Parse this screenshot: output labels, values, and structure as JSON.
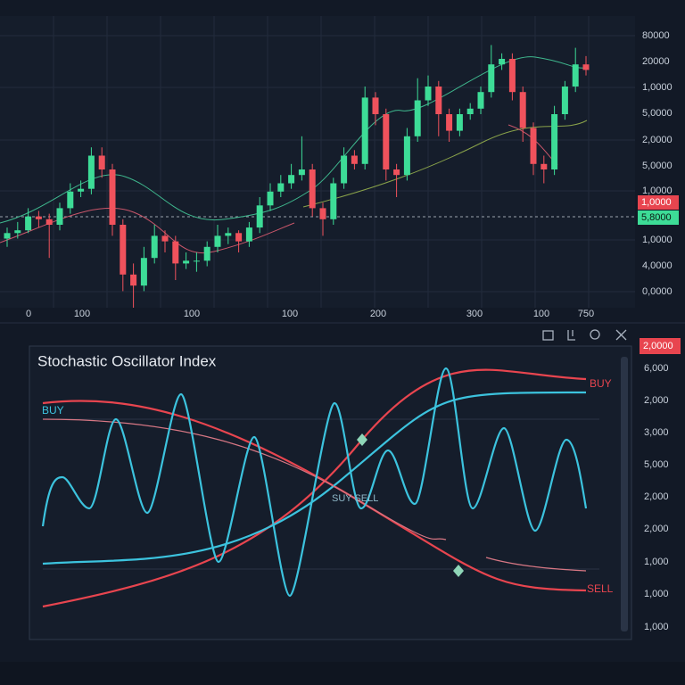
{
  "price_chart": {
    "y_axis_labels": [
      "80000",
      "20000",
      "1,0000",
      "5,0000",
      "2,0000",
      "5,0000",
      "1,0000",
      "1,0000",
      "4,0000",
      "0,0000"
    ],
    "price_badges": [
      "1,0000",
      "5,8000"
    ],
    "x_axis_labels": [
      "0",
      "100",
      "100",
      "100",
      "200",
      "300",
      "100",
      "750"
    ],
    "candles": [
      [
        25,
        29,
        22,
        27
      ],
      [
        27,
        31,
        25,
        28
      ],
      [
        28,
        36,
        27,
        33
      ],
      [
        33,
        35,
        29,
        32
      ],
      [
        32,
        34,
        18,
        30
      ],
      [
        30,
        38,
        28,
        36
      ],
      [
        36,
        45,
        34,
        42
      ],
      [
        42,
        46,
        40,
        43
      ],
      [
        43,
        58,
        41,
        55
      ],
      [
        55,
        58,
        47,
        50
      ],
      [
        50,
        52,
        26,
        30
      ],
      [
        30,
        32,
        6,
        12
      ],
      [
        12,
        16,
        0,
        8
      ],
      [
        8,
        22,
        6,
        18
      ],
      [
        18,
        30,
        16,
        26
      ],
      [
        26,
        28,
        20,
        24
      ],
      [
        24,
        26,
        10,
        16
      ],
      [
        16,
        20,
        14,
        17
      ],
      [
        17,
        20,
        13,
        17
      ],
      [
        17,
        24,
        15,
        22
      ],
      [
        22,
        30,
        20,
        26
      ],
      [
        26,
        29,
        23,
        27
      ],
      [
        27,
        28,
        20,
        24
      ],
      [
        24,
        31,
        22,
        29
      ],
      [
        29,
        40,
        27,
        37
      ],
      [
        37,
        45,
        35,
        42
      ],
      [
        42,
        48,
        40,
        45
      ],
      [
        45,
        52,
        43,
        48
      ],
      [
        48,
        62,
        46,
        50
      ],
      [
        50,
        52,
        33,
        36
      ],
      [
        36,
        38,
        26,
        32
      ],
      [
        32,
        47,
        30,
        45
      ],
      [
        45,
        58,
        43,
        55
      ],
      [
        55,
        57,
        50,
        52
      ],
      [
        52,
        80,
        50,
        76
      ],
      [
        76,
        78,
        66,
        70
      ],
      [
        70,
        72,
        46,
        50
      ],
      [
        50,
        52,
        40,
        48
      ],
      [
        48,
        65,
        46,
        62
      ],
      [
        62,
        83,
        60,
        75
      ],
      [
        75,
        84,
        73,
        80
      ],
      [
        80,
        82,
        62,
        70
      ],
      [
        70,
        72,
        60,
        64
      ],
      [
        64,
        72,
        62,
        70
      ],
      [
        70,
        74,
        68,
        72
      ],
      [
        72,
        80,
        70,
        78
      ],
      [
        78,
        95,
        76,
        88
      ],
      [
        88,
        92,
        86,
        90
      ],
      [
        90,
        92,
        75,
        78
      ],
      [
        78,
        80,
        60,
        65
      ],
      [
        65,
        67,
        48,
        52
      ],
      [
        52,
        55,
        45,
        50
      ],
      [
        50,
        73,
        48,
        70
      ],
      [
        70,
        82,
        68,
        80
      ],
      [
        80,
        94,
        78,
        88
      ],
      [
        88,
        91,
        84,
        86
      ]
    ]
  },
  "oscillator": {
    "title": "Stochastic Oscillator Index",
    "labels": {
      "buy_left": "BUY",
      "buy_right": "BUY",
      "sell": "SELL",
      "cross": "SUY SELL"
    },
    "badge": "2,0000",
    "y_axis_labels": [
      "6,000",
      "2,000",
      "3,000",
      "5,000",
      "2,000",
      "2,000",
      "1,000",
      "1,000",
      "1,000"
    ]
  }
}
